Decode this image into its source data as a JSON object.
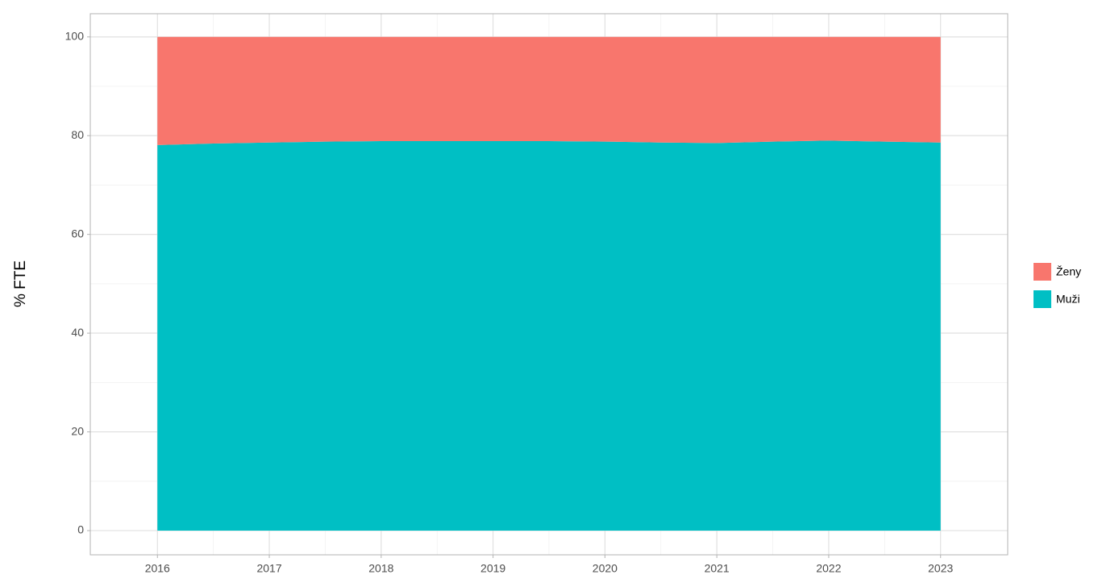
{
  "chart_data": {
    "type": "area",
    "stacked": true,
    "y_label": "% FTE",
    "x": [
      2016,
      2016.5,
      2017,
      2017.5,
      2018,
      2018.5,
      2019,
      2019.5,
      2020,
      2020.5,
      2021,
      2021.5,
      2022,
      2022.5,
      2023
    ],
    "series": [
      {
        "name": "Ženy",
        "color": "#f8766d",
        "values": [
          21.9,
          21.6,
          21.4,
          21.2,
          21.1,
          21.1,
          21.1,
          21.1,
          21.2,
          21.4,
          21.5,
          21.2,
          21.0,
          21.2,
          21.4
        ]
      },
      {
        "name": "Muži",
        "color": "#00bfc4",
        "values": [
          78.1,
          78.4,
          78.6,
          78.8,
          78.9,
          78.9,
          78.9,
          78.9,
          78.8,
          78.6,
          78.5,
          78.8,
          79.0,
          78.8,
          78.6
        ]
      }
    ],
    "xlim": [
      2015.4,
      2023.6
    ],
    "xticks": [
      2016,
      2017,
      2018,
      2019,
      2020,
      2021,
      2022,
      2023
    ],
    "ylim": [
      -4.9,
      104.7
    ],
    "yticks": [
      0,
      20,
      40,
      60,
      80,
      100
    ],
    "grid": true,
    "legend": "right"
  }
}
